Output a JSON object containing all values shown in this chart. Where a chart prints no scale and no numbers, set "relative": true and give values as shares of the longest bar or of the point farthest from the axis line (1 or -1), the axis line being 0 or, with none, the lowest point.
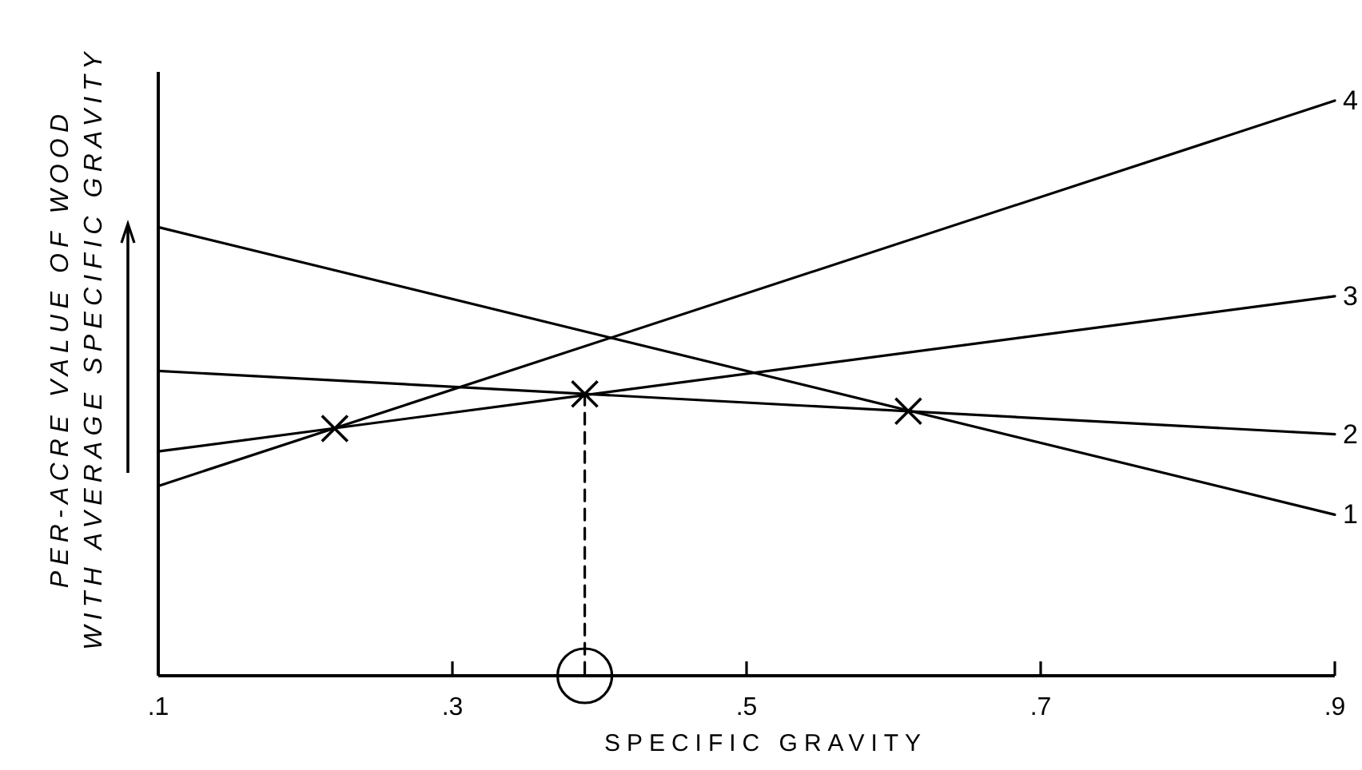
{
  "chart_data": {
    "type": "line",
    "relative": true,
    "xlabel": "SPECIFIC GRAVITY",
    "ylabel": "PER-ACRE VALUE OF WOOD\nWITH AVERAGE SPECIFIC GRAVITY",
    "xlim": [
      0.1,
      0.9
    ],
    "xticks": [
      {
        "value": 0.1,
        "label": ".1"
      },
      {
        "value": 0.3,
        "label": ".3"
      },
      {
        "value": 0.5,
        "label": ".5"
      },
      {
        "value": 0.7,
        "label": ".7"
      },
      {
        "value": 0.9,
        "label": ".9"
      }
    ],
    "series": [
      {
        "name": "1",
        "color": "#000000",
        "x": [
          0.1,
          0.9
        ],
        "values": [
          0.78,
          0.28
        ]
      },
      {
        "name": "2",
        "color": "#000000",
        "x": [
          0.1,
          0.9
        ],
        "values": [
          0.53,
          0.42
        ]
      },
      {
        "name": "3",
        "color": "#000000",
        "x": [
          0.1,
          0.9
        ],
        "values": [
          0.39,
          0.66
        ]
      },
      {
        "name": "4",
        "color": "#000000",
        "x": [
          0.1,
          0.9
        ],
        "values": [
          0.33,
          1.0
        ]
      },
      {
        "type": "line",
        "color": "#000000",
        "line_style": "dashed",
        "x": [
          0.39,
          0.39
        ],
        "values": [
          0.49,
          0
        ]
      },
      {
        "type": "scatter",
        "color": "#000000",
        "marker": "cross",
        "x": [
          0.22,
          0.39,
          0.61
        ],
        "values": [
          0.43,
          0.49,
          0.46
        ]
      },
      {
        "type": "scatter",
        "color": "#000000",
        "marker": "circle",
        "x": [
          0.39
        ],
        "values": [
          0
        ]
      }
    ]
  }
}
